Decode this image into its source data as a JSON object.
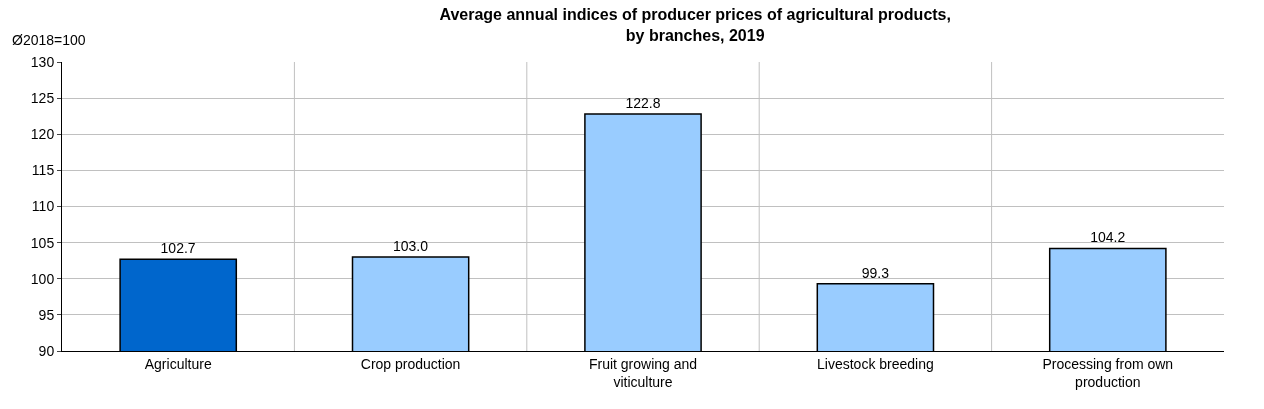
{
  "chart_data": {
    "type": "bar",
    "title": "Average annual indices of producer prices of agricultural products,\nby branches, 2019",
    "ylabel": "Ø2018=100",
    "categories": [
      "Agriculture",
      "Crop production",
      "Fruit growing and viticulture",
      "Livestock breeding",
      "Processing from own production"
    ],
    "values": [
      102.7,
      103.0,
      122.8,
      99.3,
      104.2
    ],
    "value_labels": [
      "102.7",
      "103.0",
      "122.8",
      "99.3",
      "104.2"
    ],
    "colors": [
      "#0066cc",
      "#99ccff",
      "#99ccff",
      "#99ccff",
      "#99ccff"
    ],
    "ylim": [
      90,
      130
    ],
    "yticks": [
      90,
      95,
      100,
      105,
      110,
      115,
      120,
      125,
      130
    ],
    "grid": true,
    "legend": false
  }
}
